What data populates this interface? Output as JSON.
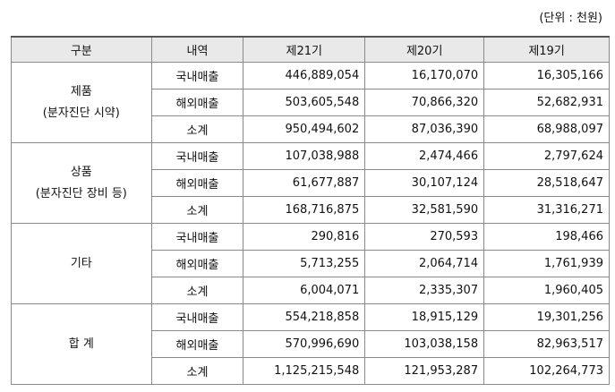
{
  "unit_note": "(단위 : 천원)",
  "headers": [
    "구분",
    "내역",
    "제21기",
    "제20기",
    "제19기"
  ],
  "groups": [
    {
      "category_line1": "제품",
      "category_line2": "(분자진단 시약)",
      "rows": [
        {
          "item": "국내매출",
          "v21": "446,889,054",
          "v20": "16,170,070",
          "v19": "16,305,166"
        },
        {
          "item": "해외매출",
          "v21": "503,605,548",
          "v20": "70,866,320",
          "v19": "52,682,931"
        },
        {
          "item": "소계",
          "v21": "950,494,602",
          "v20": "87,036,390",
          "v19": "68,988,097"
        }
      ]
    },
    {
      "category_line1": "상품",
      "category_line2": "(분자진단 장비 등)",
      "rows": [
        {
          "item": "국내매출",
          "v21": "107,038,988",
          "v20": "2,474,466",
          "v19": "2,797,624"
        },
        {
          "item": "해외매출",
          "v21": "61,677,887",
          "v20": "30,107,124",
          "v19": "28,518,647"
        },
        {
          "item": "소계",
          "v21": "168,716,875",
          "v20": "32,581,590",
          "v19": "31,316,271"
        }
      ]
    },
    {
      "category_line1": "기타",
      "category_line2": "",
      "rows": [
        {
          "item": "국내매출",
          "v21": "290,816",
          "v20": "270,593",
          "v19": "198,466"
        },
        {
          "item": "해외매출",
          "v21": "5,713,255",
          "v20": "2,064,714",
          "v19": "1,761,939"
        },
        {
          "item": "소계",
          "v21": "6,004,071",
          "v20": "2,335,307",
          "v19": "1,960,405"
        }
      ]
    },
    {
      "category_line1": "합 계",
      "category_line2": "",
      "rows": [
        {
          "item": "국내매출",
          "v21": "554,218,858",
          "v20": "18,915,129",
          "v19": "19,301,256"
        },
        {
          "item": "해외매출",
          "v21": "570,996,690",
          "v20": "103,038,158",
          "v19": "82,963,517"
        },
        {
          "item": "소계",
          "v21": "1,125,215,548",
          "v20": "121,953,287",
          "v19": "102,264,773"
        }
      ]
    }
  ]
}
